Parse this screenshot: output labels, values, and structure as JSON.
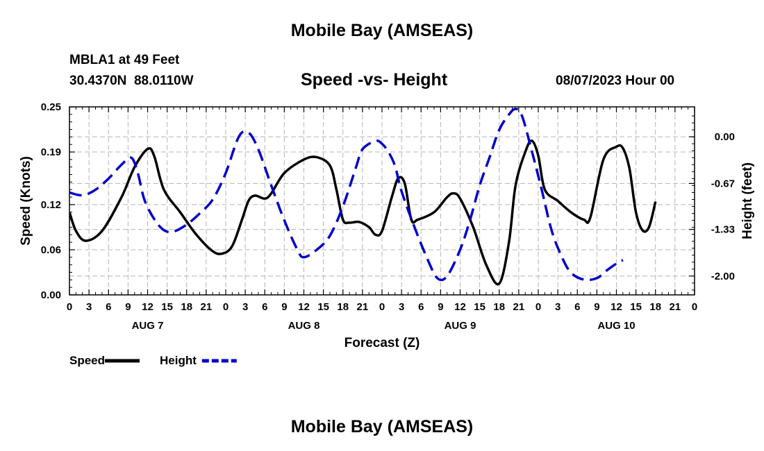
{
  "header": {
    "title": "Mobile Bay (AMSEAS)",
    "station_line": "MBLA1 at 49 Feet",
    "coords_line": "30.4370N  88.0110W",
    "subtitle": "Speed -vs- Height",
    "datetime": "08/07/2023 Hour 00"
  },
  "footer": {
    "title": "Mobile Bay (AMSEAS)"
  },
  "chart_data": {
    "type": "line",
    "title": "Speed -vs- Height",
    "xlabel": "Forecast (Z)",
    "ylabel": "Speed (Knots)",
    "y2label": "Height (feet)",
    "x_unit": "hours from 08/07/2023 00Z",
    "xlim": [
      0,
      96
    ],
    "ylim": [
      0,
      0.25
    ],
    "y2lim": [
      -2.27,
      0.43
    ],
    "x_tick_values": [
      0,
      3,
      6,
      9,
      12,
      15,
      18,
      21,
      24,
      27,
      30,
      33,
      36,
      39,
      42,
      45,
      48,
      51,
      54,
      57,
      60,
      63,
      66,
      69,
      72,
      75,
      78,
      81,
      84,
      87,
      90,
      93,
      96
    ],
    "x_tick_labels": [
      "0",
      "3",
      "6",
      "9",
      "12",
      "15",
      "18",
      "21",
      "0",
      "3",
      "6",
      "9",
      "12",
      "15",
      "18",
      "21",
      "0",
      "3",
      "6",
      "9",
      "12",
      "15",
      "18",
      "21",
      "0",
      "3",
      "6",
      "9",
      "12",
      "15",
      "18",
      "21",
      "0"
    ],
    "day_labels": [
      {
        "x": 12,
        "label": "AUG 7"
      },
      {
        "x": 36,
        "label": "AUG 8"
      },
      {
        "x": 60,
        "label": "AUG 9"
      },
      {
        "x": 84,
        "label": "AUG 10"
      }
    ],
    "y_ticks": [
      0,
      0.06,
      0.12,
      0.19,
      0.25
    ],
    "y_tick_labels": [
      "0.00",
      "0.06",
      "0.12",
      "0.19",
      "0.25"
    ],
    "y2_ticks": [
      0,
      -0.67,
      -1.33,
      -2.0
    ],
    "y2_tick_labels": [
      "0.00",
      "-0.67",
      "-1.33",
      "-2.00"
    ],
    "grid": true,
    "legend_position": "bottom-left",
    "series": [
      {
        "name": "Speed",
        "axis": "left",
        "color": "#000000",
        "dash": "solid",
        "points": [
          [
            0,
            0.11
          ],
          [
            1,
            0.085
          ],
          [
            2.5,
            0.072
          ],
          [
            5,
            0.085
          ],
          [
            8,
            0.13
          ],
          [
            10,
            0.17
          ],
          [
            12,
            0.194
          ],
          [
            13,
            0.185
          ],
          [
            14.5,
            0.14
          ],
          [
            17,
            0.11
          ],
          [
            19.5,
            0.08
          ],
          [
            22,
            0.058
          ],
          [
            23.5,
            0.055
          ],
          [
            25,
            0.065
          ],
          [
            26.5,
            0.1
          ],
          [
            27.5,
            0.125
          ],
          [
            28.5,
            0.132
          ],
          [
            30,
            0.128
          ],
          [
            31,
            0.135
          ],
          [
            33,
            0.162
          ],
          [
            36,
            0.18
          ],
          [
            38,
            0.183
          ],
          [
            40,
            0.172
          ],
          [
            41,
            0.14
          ],
          [
            42,
            0.1
          ],
          [
            43,
            0.096
          ],
          [
            44.5,
            0.097
          ],
          [
            46,
            0.09
          ],
          [
            47,
            0.08
          ],
          [
            48,
            0.085
          ],
          [
            49.5,
            0.13
          ],
          [
            50.5,
            0.155
          ],
          [
            51.5,
            0.148
          ],
          [
            52.5,
            0.1
          ],
          [
            53.5,
            0.1
          ],
          [
            56,
            0.11
          ],
          [
            58,
            0.13
          ],
          [
            59,
            0.135
          ],
          [
            60,
            0.128
          ],
          [
            62,
            0.09
          ],
          [
            64,
            0.04
          ],
          [
            66,
            0.015
          ],
          [
            67.5,
            0.07
          ],
          [
            68.5,
            0.145
          ],
          [
            70,
            0.19
          ],
          [
            71,
            0.205
          ],
          [
            72,
            0.185
          ],
          [
            73,
            0.14
          ],
          [
            75,
            0.125
          ],
          [
            77,
            0.11
          ],
          [
            79,
            0.1
          ],
          [
            80,
            0.103
          ],
          [
            82,
            0.18
          ],
          [
            84,
            0.197
          ],
          [
            85,
            0.195
          ],
          [
            86,
            0.168
          ],
          [
            87,
            0.11
          ],
          [
            88,
            0.086
          ],
          [
            89,
            0.09
          ],
          [
            90,
            0.124
          ]
        ]
      },
      {
        "name": "Height",
        "axis": "right",
        "color": "#0000cc",
        "dash": "dashed",
        "points": [
          [
            0,
            -0.8
          ],
          [
            2,
            -0.84
          ],
          [
            4,
            -0.76
          ],
          [
            6,
            -0.6
          ],
          [
            8,
            -0.4
          ],
          [
            9.5,
            -0.3
          ],
          [
            10.5,
            -0.52
          ],
          [
            11.5,
            -0.9
          ],
          [
            13,
            -1.18
          ],
          [
            14.5,
            -1.34
          ],
          [
            16,
            -1.36
          ],
          [
            18,
            -1.26
          ],
          [
            20,
            -1.1
          ],
          [
            22,
            -0.9
          ],
          [
            24,
            -0.52
          ],
          [
            26,
            0.0
          ],
          [
            27.5,
            0.06
          ],
          [
            29,
            -0.18
          ],
          [
            31,
            -0.7
          ],
          [
            33,
            -1.2
          ],
          [
            35,
            -1.62
          ],
          [
            36,
            -1.73
          ],
          [
            38,
            -1.62
          ],
          [
            40,
            -1.42
          ],
          [
            42,
            -1.0
          ],
          [
            44,
            -0.44
          ],
          [
            45,
            -0.18
          ],
          [
            47,
            -0.06
          ],
          [
            48,
            -0.1
          ],
          [
            49,
            -0.22
          ],
          [
            50,
            -0.42
          ],
          [
            51,
            -0.78
          ],
          [
            53,
            -1.3
          ],
          [
            55,
            -1.76
          ],
          [
            56.5,
            -2.03
          ],
          [
            58,
            -2.0
          ],
          [
            60,
            -1.62
          ],
          [
            61.5,
            -1.2
          ],
          [
            63,
            -0.7
          ],
          [
            64.5,
            -0.3
          ],
          [
            66,
            0.1
          ],
          [
            67.5,
            0.32
          ],
          [
            68.5,
            0.4
          ],
          [
            69.5,
            0.3
          ],
          [
            71,
            -0.2
          ],
          [
            72.5,
            -0.75
          ],
          [
            74,
            -1.33
          ],
          [
            75.5,
            -1.7
          ],
          [
            77,
            -1.95
          ],
          [
            79,
            -2.05
          ],
          [
            81,
            -2.03
          ],
          [
            82.5,
            -1.92
          ],
          [
            84,
            -1.82
          ],
          [
            85,
            -1.77
          ]
        ]
      }
    ]
  }
}
